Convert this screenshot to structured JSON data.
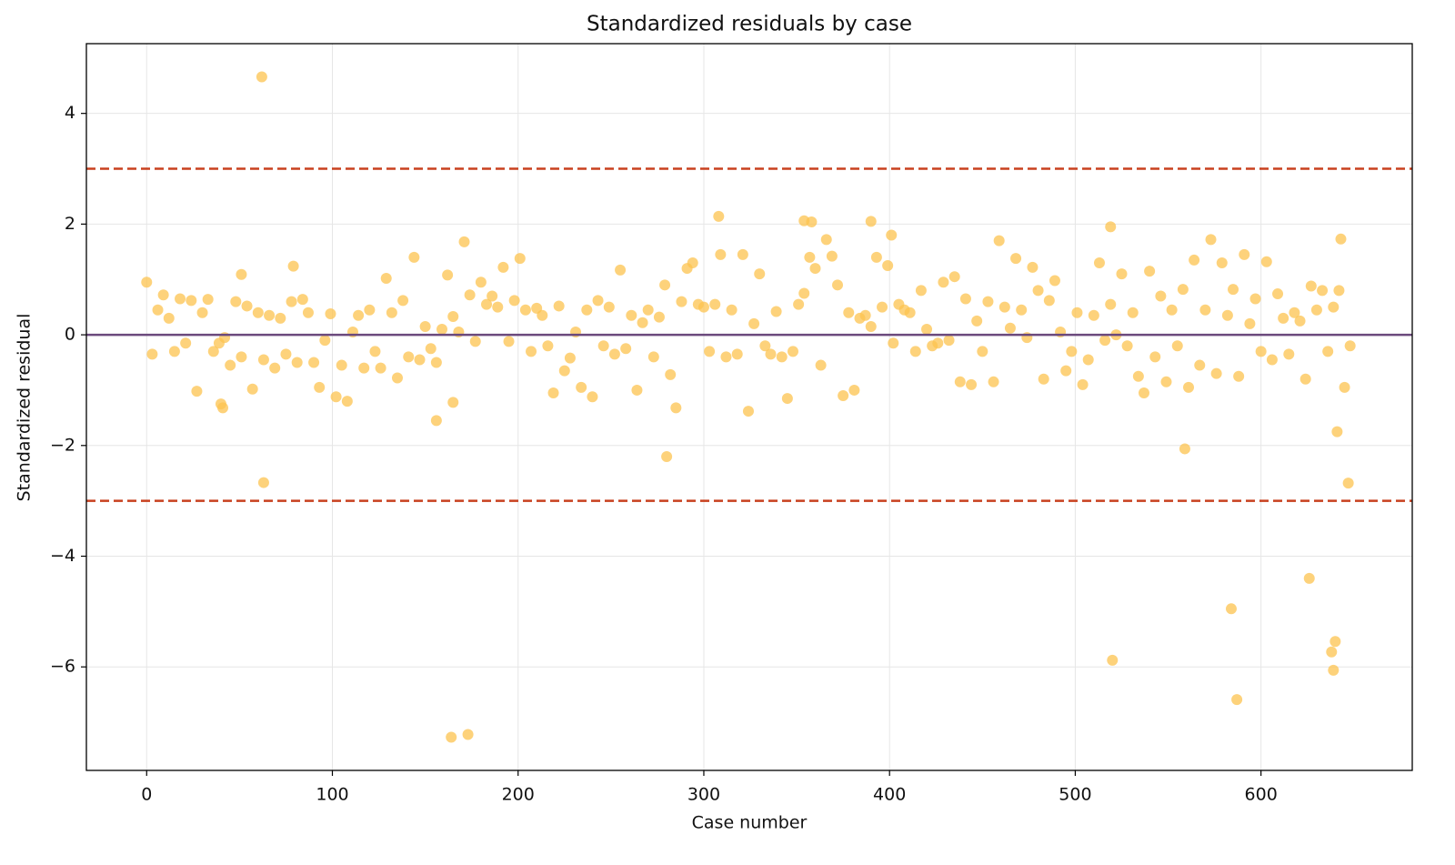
{
  "chart_data": {
    "type": "scatter",
    "title": "Standardized residuals by case",
    "x_label": "Case number",
    "y_label": "Standardized residual",
    "color": "#fcc34f",
    "opacity": 0.75,
    "grid": true,
    "xlim": [
      -32.45,
      681.45
    ],
    "ylim": [
      -7.87,
      5.26
    ],
    "xticks": [
      0,
      100,
      200,
      300,
      400,
      500,
      600
    ],
    "yticks": [
      {
        "value": -6,
        "label": "−6"
      },
      {
        "value": -4,
        "label": "−4"
      },
      {
        "value": -2,
        "label": "−2"
      },
      0,
      2,
      4
    ],
    "reference_lines": [
      {
        "value": 0,
        "color": "#6b4a7d",
        "style": "solid"
      },
      {
        "value": 3,
        "color": "#c8401f",
        "style": "dashed"
      },
      {
        "value": -3,
        "color": "#c8401f",
        "style": "dashed"
      }
    ],
    "x": [
      0,
      3,
      6,
      9,
      12,
      15,
      18,
      21,
      24,
      27,
      30,
      33,
      36,
      39,
      42,
      45,
      48,
      51,
      54,
      57,
      60,
      63,
      66,
      69,
      72,
      75,
      78,
      81,
      84,
      87,
      90,
      93,
      96,
      99,
      102,
      105,
      108,
      111,
      114,
      117,
      120,
      123,
      126,
      129,
      132,
      135,
      138,
      141,
      144,
      147,
      150,
      153,
      156,
      159,
      162,
      165,
      168,
      171,
      174,
      177,
      180,
      183,
      186,
      189,
      192,
      195,
      198,
      201,
      204,
      207,
      210,
      213,
      216,
      219,
      222,
      225,
      228,
      231,
      234,
      237,
      240,
      243,
      246,
      249,
      252,
      255,
      258,
      261,
      264,
      267,
      270,
      273,
      276,
      279,
      282,
      285,
      288,
      291,
      294,
      297,
      300,
      303,
      306,
      309,
      312,
      315,
      318,
      321,
      324,
      327,
      330,
      333,
      336,
      339,
      342,
      345,
      348,
      351,
      354,
      357,
      360,
      363,
      366,
      369,
      372,
      375,
      378,
      381,
      384,
      387,
      390,
      393,
      396,
      399,
      402,
      405,
      408,
      411,
      414,
      417,
      420,
      423,
      426,
      429,
      432,
      435,
      438,
      441,
      444,
      447,
      450,
      453,
      456,
      459,
      462,
      465,
      468,
      471,
      474,
      477,
      480,
      483,
      486,
      489,
      492,
      495,
      498,
      501,
      504,
      507,
      510,
      513,
      516,
      519,
      522,
      525,
      528,
      531,
      534,
      537,
      540,
      543,
      546,
      549,
      552,
      555,
      558,
      561,
      564,
      567,
      570,
      573,
      576,
      579,
      582,
      585,
      588,
      591,
      594,
      597,
      600,
      603,
      606,
      609,
      612,
      615,
      618,
      621,
      624,
      627,
      630,
      633,
      636,
      639,
      642,
      645,
      648,
      62,
      63,
      164,
      173,
      156,
      165,
      280,
      308,
      354,
      358,
      390,
      401,
      519,
      520,
      559,
      584,
      587,
      626,
      638,
      639,
      640,
      641,
      643,
      647,
      40,
      41,
      51,
      79
    ],
    "values": [
      0.95,
      -0.35,
      0.45,
      0.72,
      0.3,
      -0.3,
      0.65,
      -0.15,
      0.62,
      -1.02,
      0.4,
      0.64,
      -0.3,
      -0.15,
      -0.05,
      -0.55,
      0.6,
      -0.4,
      0.52,
      -0.98,
      0.4,
      -0.45,
      0.35,
      -0.6,
      0.3,
      -0.35,
      0.6,
      -0.5,
      0.64,
      0.4,
      -0.5,
      -0.95,
      -0.1,
      0.38,
      -1.12,
      -0.55,
      -1.2,
      0.05,
      0.35,
      -0.6,
      0.45,
      -0.3,
      -0.6,
      1.02,
      0.4,
      -0.78,
      0.62,
      -0.4,
      1.4,
      -0.45,
      0.15,
      -0.25,
      -0.5,
      0.1,
      1.08,
      0.33,
      0.05,
      1.68,
      0.72,
      -0.12,
      0.95,
      0.55,
      0.7,
      0.5,
      1.22,
      -0.12,
      0.62,
      1.38,
      0.45,
      -0.3,
      0.48,
      0.35,
      -0.2,
      -1.05,
      0.52,
      -0.65,
      -0.42,
      0.05,
      -0.95,
      0.45,
      -1.12,
      0.62,
      -0.2,
      0.5,
      -0.35,
      1.17,
      -0.25,
      0.35,
      -1.0,
      0.22,
      0.45,
      -0.4,
      0.32,
      0.9,
      -0.72,
      -1.32,
      0.6,
      1.2,
      1.3,
      0.55,
      0.5,
      -0.3,
      0.55,
      1.45,
      -0.4,
      0.45,
      -0.35,
      1.45,
      -1.38,
      0.2,
      1.1,
      -0.2,
      -0.35,
      0.42,
      -0.4,
      -1.15,
      -0.3,
      0.55,
      0.75,
      1.4,
      1.2,
      -0.55,
      1.72,
      1.42,
      0.9,
      -1.1,
      0.4,
      -1.0,
      0.3,
      0.35,
      0.15,
      1.4,
      0.5,
      1.25,
      -0.15,
      0.55,
      0.45,
      0.4,
      -0.3,
      0.8,
      0.1,
      -0.2,
      -0.15,
      0.95,
      -0.1,
      1.05,
      -0.85,
      0.65,
      -0.9,
      0.25,
      -0.3,
      0.6,
      -0.85,
      1.7,
      0.5,
      0.12,
      1.38,
      0.45,
      -0.05,
      1.22,
      0.8,
      -0.8,
      0.62,
      0.98,
      0.05,
      -0.65,
      -0.3,
      0.4,
      -0.9,
      -0.45,
      0.35,
      1.3,
      -0.1,
      0.55,
      0.0,
      1.1,
      -0.2,
      0.4,
      -0.75,
      -1.05,
      1.15,
      -0.4,
      0.7,
      -0.85,
      0.45,
      -0.2,
      0.82,
      -0.95,
      1.35,
      -0.55,
      0.45,
      1.72,
      -0.7,
      1.3,
      0.35,
      0.82,
      -0.75,
      1.45,
      0.2,
      0.65,
      -0.3,
      1.32,
      -0.45,
      0.74,
      0.3,
      -0.35,
      0.4,
      0.25,
      -0.8,
      0.88,
      0.45,
      0.8,
      -0.3,
      0.5,
      0.8,
      -0.95,
      -0.2,
      4.66,
      -2.67,
      -7.27,
      -7.22,
      -1.55,
      -1.22,
      -2.2,
      2.14,
      2.06,
      2.04,
      2.05,
      1.8,
      1.95,
      -5.88,
      -2.06,
      -4.95,
      -6.59,
      -4.4,
      -5.73,
      -6.06,
      -5.54,
      -1.75,
      1.73,
      -2.68,
      -1.25,
      -1.32,
      1.09,
      1.24
    ]
  }
}
